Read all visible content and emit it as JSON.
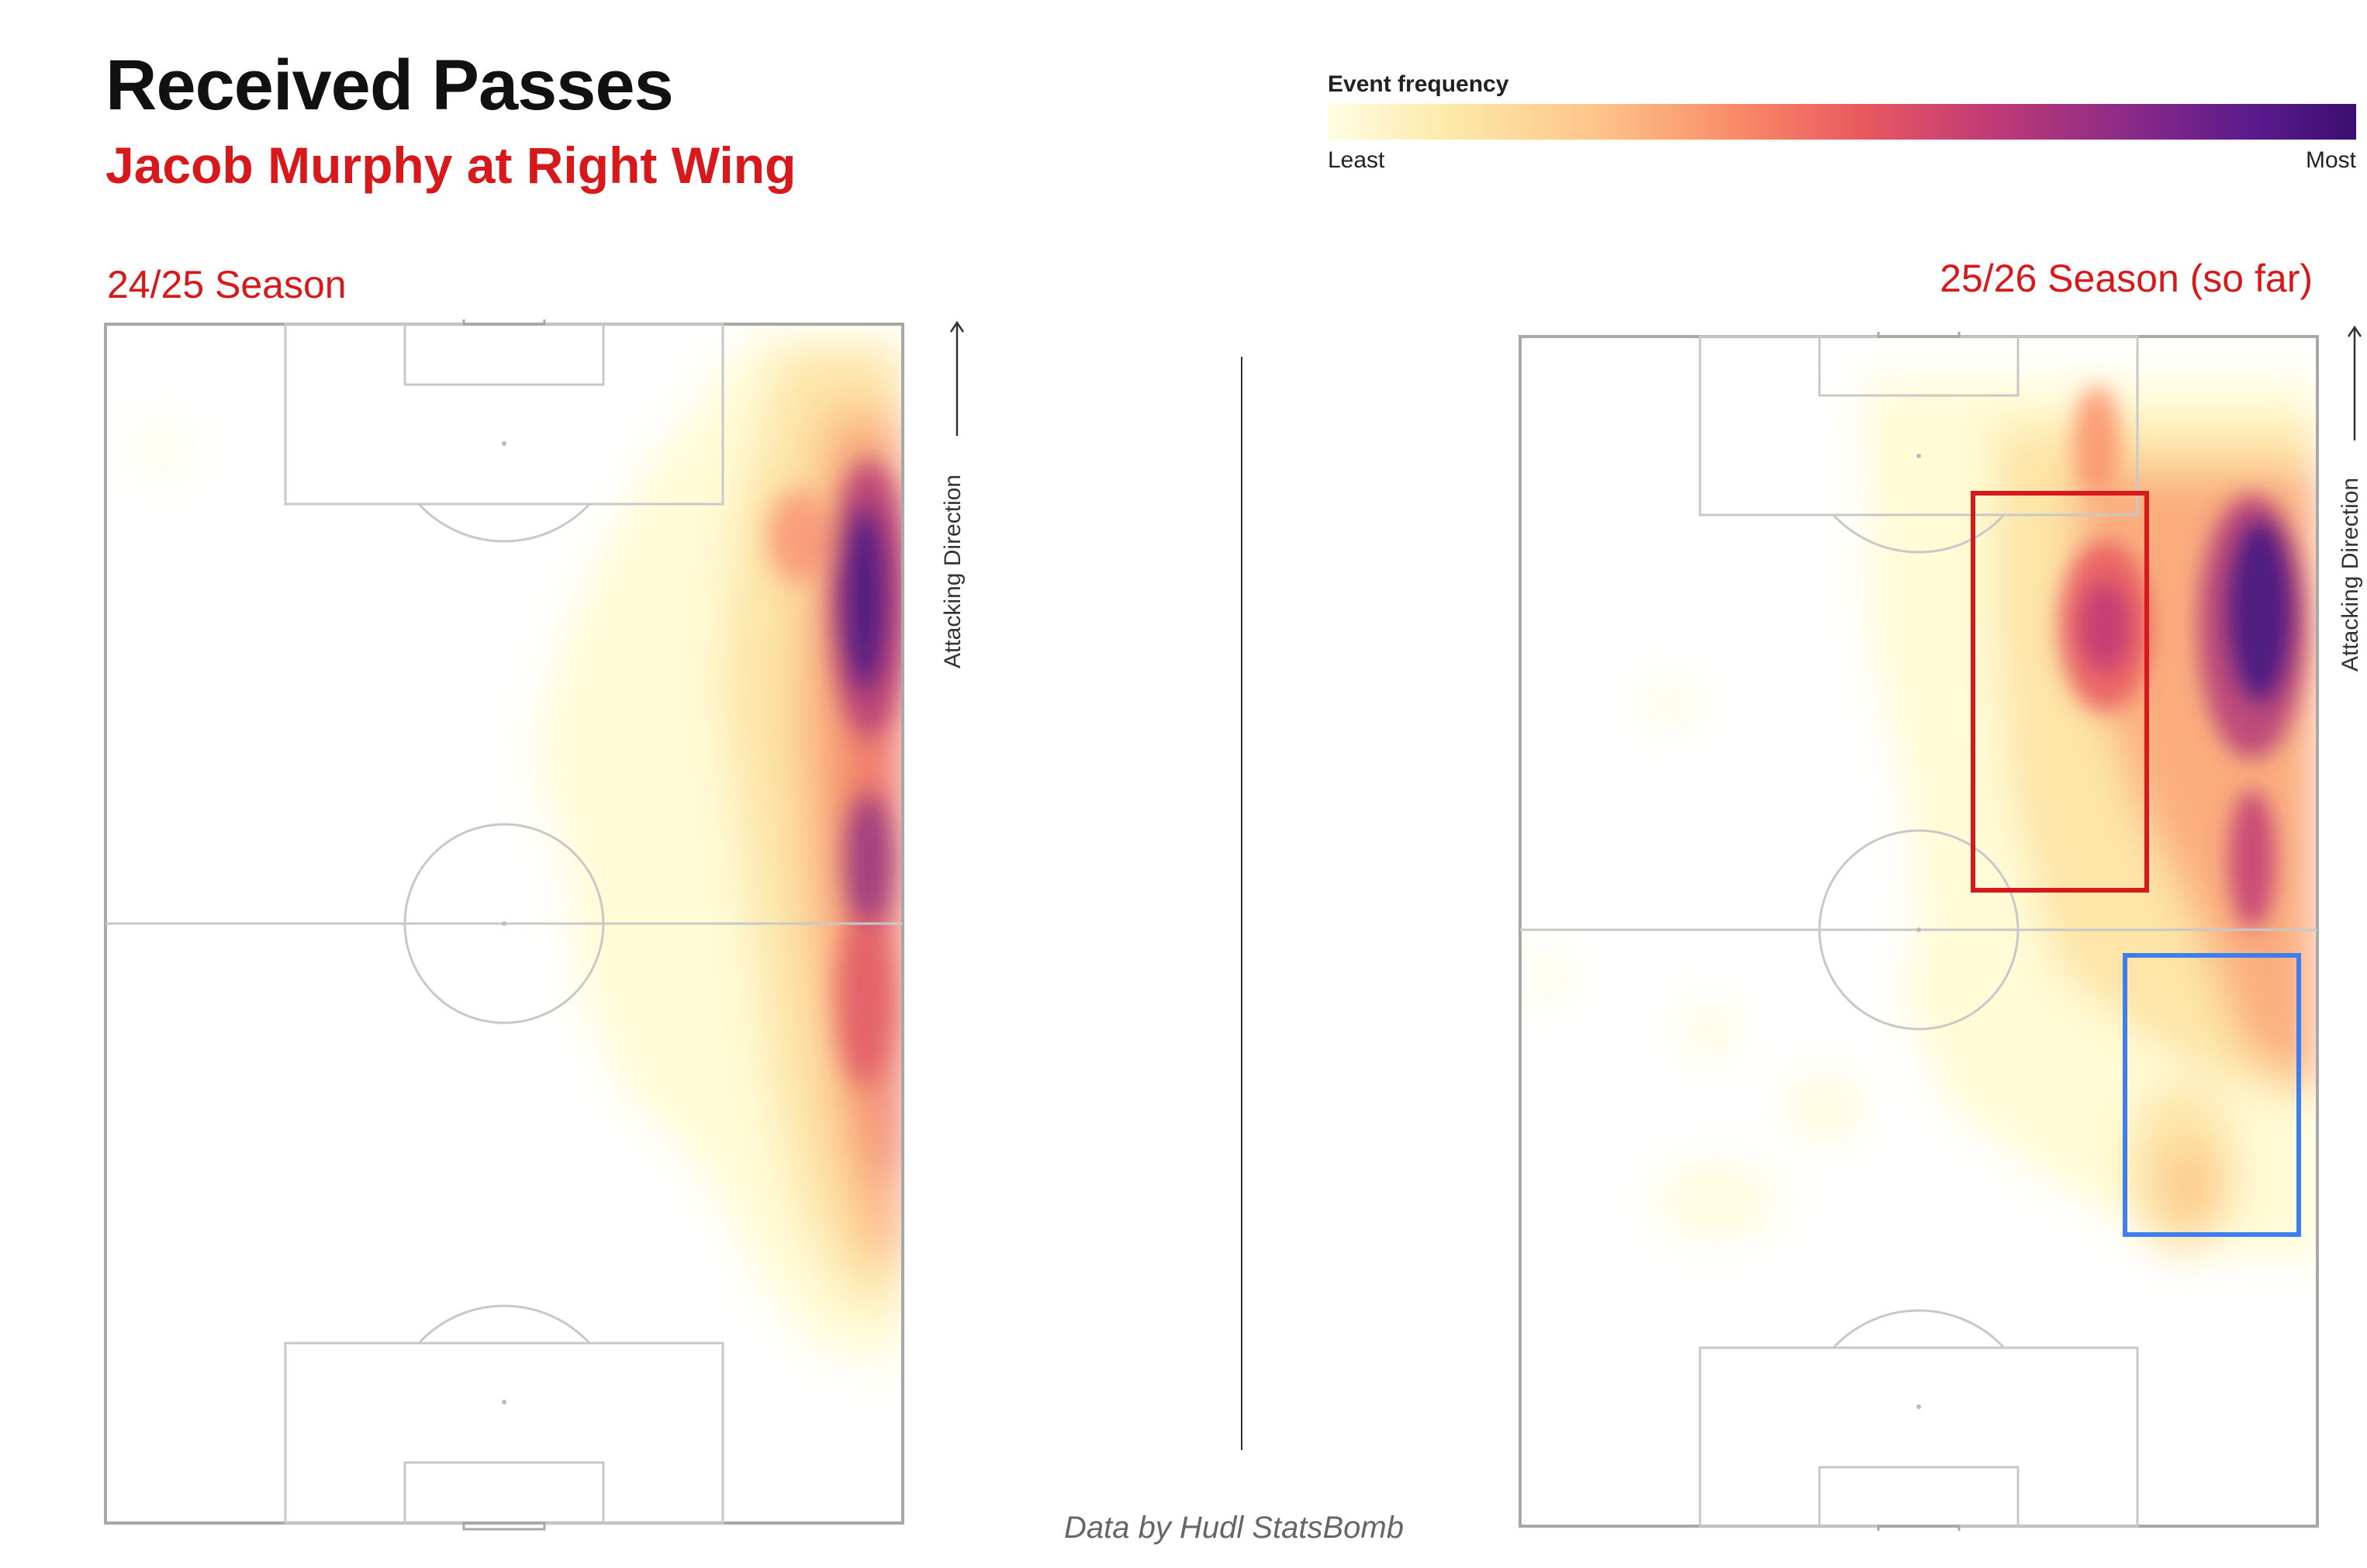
{
  "header": {
    "title": "Received Passes",
    "subtitle": "Jacob Murphy at Right Wing"
  },
  "legend": {
    "title": "Event frequency",
    "min_label": "Least",
    "max_label": "Most",
    "colors": [
      "#fffde4",
      "#fde9a8",
      "#fdc58a",
      "#f98a67",
      "#e8585f",
      "#c13b75",
      "#8a2a87",
      "#5a1a8c",
      "#3b0f70"
    ]
  },
  "panels": [
    {
      "season": "24/25 Season",
      "attack_label": "Attacking Direction"
    },
    {
      "season": "25/26 Season (so far)",
      "attack_label": "Attacking Direction",
      "highlight_colors": {
        "red": "#d7191c",
        "blue": "#3d7ff0"
      }
    }
  ],
  "footer": {
    "credit": "Data by Hudl StatsBomb"
  }
}
